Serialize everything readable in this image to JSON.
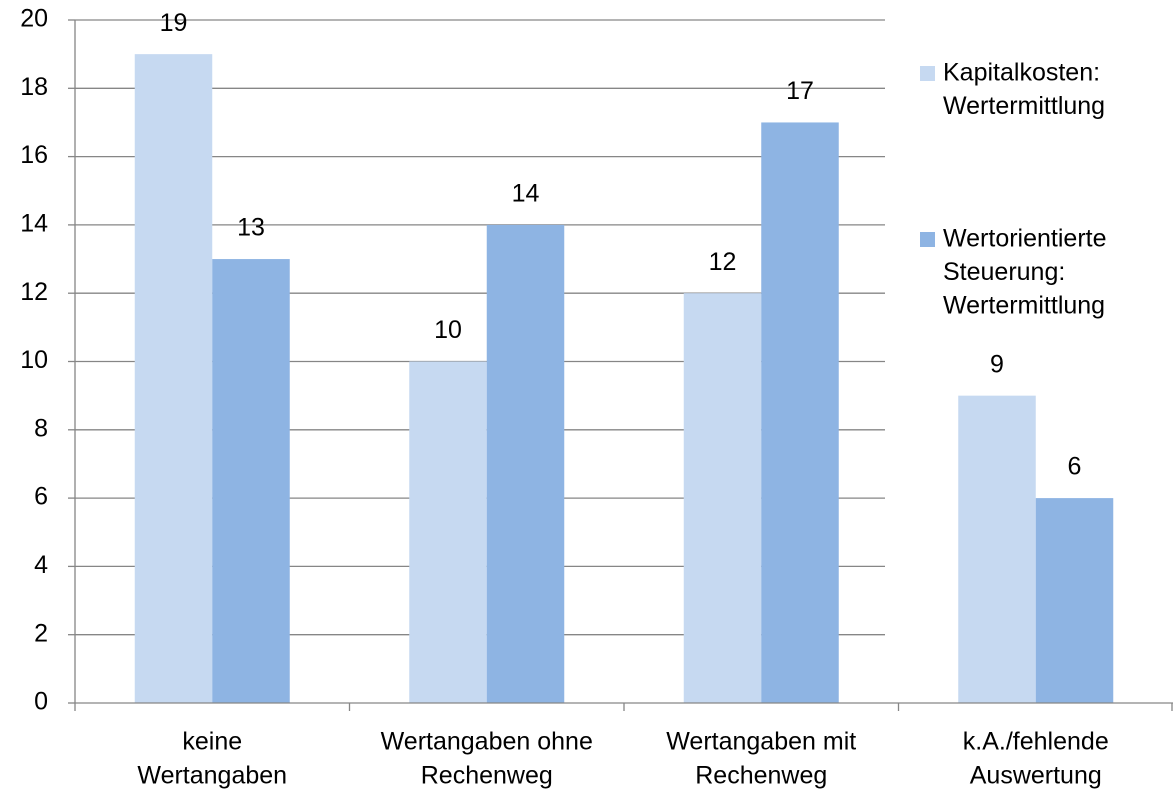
{
  "chart_data": {
    "type": "bar",
    "categories": [
      [
        "keine",
        "Wertangaben"
      ],
      [
        "Wertangaben ohne",
        "Rechenweg"
      ],
      [
        "Wertangaben mit",
        "Rechenweg"
      ],
      [
        "k.A./fehlende",
        "Auswertung"
      ]
    ],
    "series": [
      {
        "name": [
          "Kapitalkosten:",
          "Wertermittlung"
        ],
        "color": "#c6d9f1",
        "values": [
          19,
          10,
          12,
          9
        ]
      },
      {
        "name": [
          "Wertorientierte",
          "Steuerung:",
          "Wertermittlung"
        ],
        "color": "#8eb4e3",
        "values": [
          13,
          14,
          17,
          6
        ]
      }
    ],
    "ylim": [
      0,
      20
    ],
    "yticks": [
      0,
      2,
      4,
      6,
      8,
      10,
      12,
      14,
      16,
      18,
      20
    ],
    "grid": true,
    "legend": "right"
  }
}
